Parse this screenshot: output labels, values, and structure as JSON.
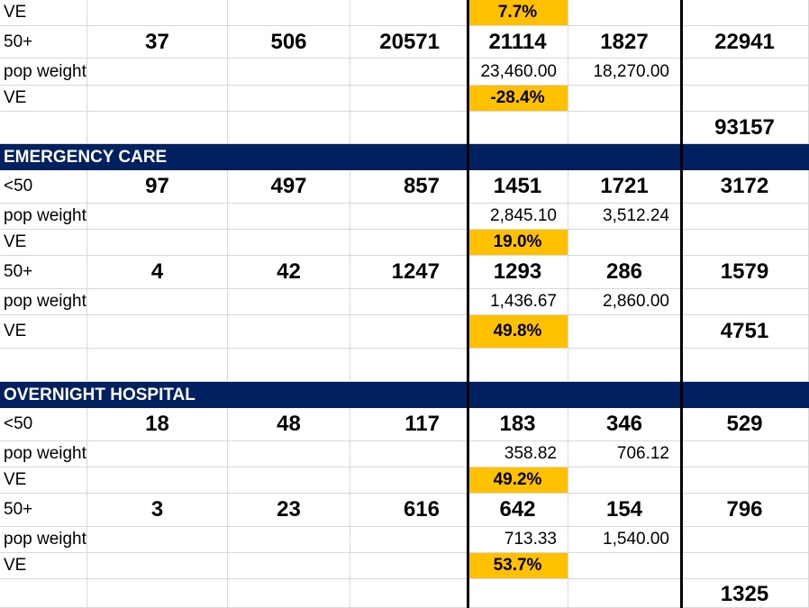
{
  "rows": {
    "r1": {
      "label": "VE",
      "ve": "7.7%"
    },
    "r2": {
      "label": "50+",
      "a": "37",
      "b": "506",
      "c": "20571",
      "d": "21114",
      "e": "1827",
      "f": "22941"
    },
    "r3": {
      "label": "pop weighted",
      "d": "23,460.00",
      "e": "18,270.00"
    },
    "r4": {
      "label": "VE",
      "ve": "-28.4%"
    },
    "r5": {
      "f": "93157"
    },
    "h1": {
      "label": "EMERGENCY CARE"
    },
    "r6": {
      "label": "<50",
      "a": "97",
      "b": "497",
      "c": "857",
      "d": "1451",
      "e": "1721",
      "f": "3172"
    },
    "r7": {
      "label": "pop weighted",
      "d": "2,845.10",
      "e": "3,512.24"
    },
    "r8": {
      "label": "VE",
      "ve": "19.0%"
    },
    "r9": {
      "label": "50+",
      "a": "4",
      "b": "42",
      "c": "1247",
      "d": "1293",
      "e": "286",
      "f": "1579"
    },
    "r10": {
      "label": "pop weighted",
      "d": "1,436.67",
      "e": "2,860.00"
    },
    "r11": {
      "label": "VE",
      "ve": "49.8%",
      "f": "4751"
    },
    "h2": {
      "label": "OVERNIGHT HOSPITAL"
    },
    "r12": {
      "label": "<50",
      "a": "18",
      "b": "48",
      "c": "117",
      "d": "183",
      "e": "346",
      "f": "529"
    },
    "r13": {
      "label": "pop weighted",
      "d": "358.82",
      "e": "706.12"
    },
    "r14": {
      "label": "VE",
      "ve": "49.2%"
    },
    "r15": {
      "label": "50+",
      "a": "3",
      "b": "23",
      "c": "616",
      "d": "642",
      "e": "154",
      "f": "796"
    },
    "r16": {
      "label": "pop weighted",
      "d": "713.33",
      "e": "1,540.00"
    },
    "r17": {
      "label": "VE",
      "ve": "53.7%"
    },
    "r18": {
      "f": "1325"
    }
  },
  "colors": {
    "header_bg": "#002060",
    "highlight": "#ffc000"
  }
}
